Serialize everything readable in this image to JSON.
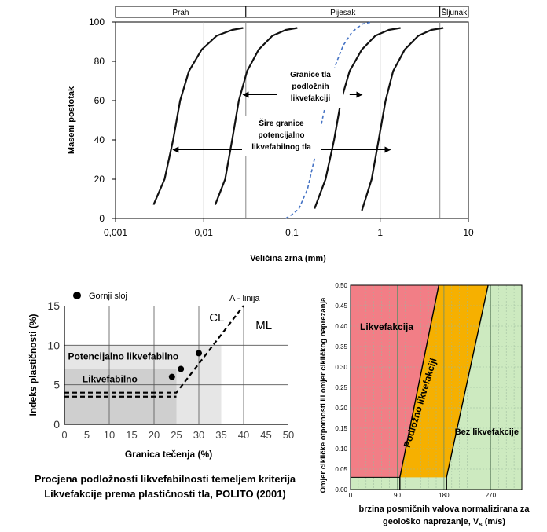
{
  "chart_data": [
    {
      "type": "line",
      "xlabel": "Veličina zrna (mm)",
      "ylabel": "Maseni postotak",
      "x_scale": "log",
      "xlim": [
        0.001,
        10
      ],
      "ylim": [
        0,
        100
      ],
      "x_ticks": [
        "0,001",
        "0,01",
        "0,1",
        "1",
        "10"
      ],
      "y_ticks": [
        "0",
        "20",
        "40",
        "60",
        "80",
        "100"
      ],
      "size_classes": [
        {
          "label": "Prah",
          "from": 0.0007,
          "to": 0.03
        },
        {
          "label": "Pijesak",
          "from": 0.03,
          "to": 4.75
        },
        {
          "label": "Šljunak",
          "from": 4.75,
          "to": 10
        }
      ],
      "series": [
        {
          "style": "solid",
          "x": [
            0.0027,
            0.0036,
            0.0045,
            0.0054,
            0.0068,
            0.0095,
            0.014,
            0.021,
            0.028
          ],
          "y": [
            7,
            20,
            40,
            60,
            75,
            86,
            93,
            96,
            97
          ]
        },
        {
          "style": "solid",
          "x": [
            0.0135,
            0.0175,
            0.021,
            0.025,
            0.031,
            0.042,
            0.06,
            0.085,
            0.115
          ],
          "y": [
            7,
            20,
            40,
            60,
            75,
            86,
            93,
            96,
            97
          ]
        },
        {
          "style": "solid",
          "x": [
            0.18,
            0.24,
            0.3,
            0.36,
            0.45,
            0.62,
            0.88,
            1.25,
            1.7
          ],
          "y": [
            5,
            20,
            40,
            60,
            75,
            86,
            93,
            96,
            97
          ]
        },
        {
          "style": "solid",
          "x": [
            0.62,
            0.8,
            0.96,
            1.15,
            1.4,
            1.9,
            2.7,
            3.8,
            5.2
          ],
          "y": [
            4,
            20,
            40,
            60,
            75,
            86,
            93,
            96,
            97
          ]
        },
        {
          "style": "dashed",
          "x": [
            0.085,
            0.1,
            0.12,
            0.15,
            0.19,
            0.22,
            0.26,
            0.31,
            0.38,
            0.48,
            0.63,
            0.8
          ],
          "y": [
            0,
            2,
            5,
            15,
            35,
            50,
            65,
            78,
            88,
            95,
            99,
            100
          ]
        }
      ],
      "annotations": [
        {
          "lines": [
            "Granice tla",
            "podložnih",
            "likvefakciji"
          ],
          "arrows": [
            {
              "from": 0.2,
              "to": 0.028,
              "y": 63
            },
            {
              "from": 0.45,
              "to": 0.62,
              "y": 63
            }
          ]
        },
        {
          "lines": [
            "Šire granice",
            "potencijalno",
            "likvefabilnog tla"
          ],
          "arrows": [
            {
              "from": 0.028,
              "to": 0.0045,
              "y": 35
            },
            {
              "from": 0.2,
              "to": 1.3,
              "y": 35
            }
          ]
        }
      ]
    },
    {
      "type": "scatter",
      "xlabel": "Granica tečenja (%)",
      "ylabel": "Indeks plastičnosti (%)",
      "xlim": [
        0,
        50
      ],
      "ylim": [
        0,
        15
      ],
      "x_ticks": [
        "0",
        "5",
        "10",
        "15",
        "20",
        "25",
        "30",
        "35",
        "40",
        "45",
        "50"
      ],
      "y_ticks": [
        "0",
        "5",
        "10",
        "15"
      ],
      "legend": {
        "label": "Gornji sloj",
        "placement": "top-left"
      },
      "points": [
        {
          "x": 24,
          "y": 6
        },
        {
          "x": 26,
          "y": 7
        },
        {
          "x": 30,
          "y": 9
        }
      ],
      "zones": [
        {
          "label": "Potencijalno likvefabilno",
          "x": [
            0,
            35
          ],
          "y": [
            0,
            10
          ]
        },
        {
          "label": "Likvefabilno",
          "x": [
            0,
            25
          ],
          "y": [
            0,
            7
          ]
        }
      ],
      "region_labels": [
        {
          "label": "CL",
          "x": 34,
          "y": 13
        },
        {
          "label": "ML",
          "x": 44.5,
          "y": 12
        }
      ],
      "a_line": {
        "label": "A - linija",
        "x": [
          0,
          25,
          40
        ],
        "y": [
          4,
          4,
          15
        ]
      },
      "dashed_line": {
        "x": [
          0,
          25
        ],
        "y": [
          3.5,
          3.5
        ]
      }
    },
    {
      "type": "area",
      "xlabel": [
        "brzina posmičnih valova normalizirana za",
        "geološko naprezanje, V"
      ],
      "xlabel_subscript": "s",
      "xlabel_unit": " (m/s)",
      "ylabel": "Omjer cikličke otpornosti ili omjer cikličkog naprezanja",
      "xlim": [
        0,
        330
      ],
      "ylim": [
        0,
        0.5
      ],
      "x_ticks": [
        "0",
        "90",
        "180",
        "270"
      ],
      "y_ticks": [
        "0.00",
        "0.05",
        "0.10",
        "0.15",
        "0.20",
        "0.25",
        "0.30",
        "0.35",
        "0.40",
        "0.45",
        "0.50"
      ],
      "regions": [
        {
          "label": "Likvefakcija",
          "color": "#f27e86"
        },
        {
          "label": "Podložno likvefakciji",
          "color": "#f6b000"
        },
        {
          "label": "Bez likvefakcije",
          "color": "#cdeac0"
        }
      ],
      "boundaries": {
        "left": {
          "x": [
            95,
            95,
            170
          ],
          "y": [
            0,
            0.03,
            0.5
          ]
        },
        "right": {
          "x": [
            185,
            185,
            265
          ],
          "y": [
            0,
            0.03,
            0.5
          ]
        }
      }
    }
  ],
  "caption": {
    "line1": "Procjena podložnosti likvefabilnosti temeljem kriterija",
    "line2": "Likvefakcije prema plastičnosti tla, POLITO (2001)"
  }
}
